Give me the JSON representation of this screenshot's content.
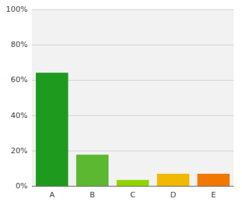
{
  "chart_data": {
    "type": "bar",
    "categories": [
      "A",
      "B",
      "C",
      "D",
      "E"
    ],
    "values": [
      64.3,
      17.9,
      3.6,
      7.1,
      7.1
    ],
    "colors": [
      "#1e9a1e",
      "#5cb830",
      "#8fd400",
      "#f0b800",
      "#f07800"
    ],
    "ylim": [
      0,
      100
    ],
    "yticks": [
      {
        "value": 0,
        "label": "0%"
      },
      {
        "value": 20,
        "label": "20%"
      },
      {
        "value": 40,
        "label": "40%"
      },
      {
        "value": 60,
        "label": "60%"
      },
      {
        "value": 80,
        "label": "80%"
      },
      {
        "value": 100,
        "label": "100%"
      }
    ],
    "grid": true
  }
}
